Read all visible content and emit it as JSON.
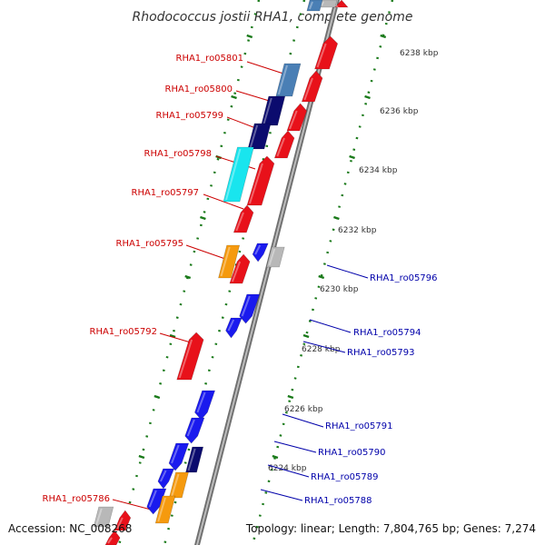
{
  "title": "Rhodococcus jostii RHA1, complete genome",
  "footer": {
    "accession": "Accession: NC_008268",
    "summary": "Topology: linear; Length: 7,804,765 bp; Genes: 7,274"
  },
  "scale_labels": [
    "6238 kbp",
    "6236 kbp",
    "6234 kbp",
    "6232 kbp",
    "6230 kbp",
    "6228 kbp",
    "6226 kbp",
    "6224 kbp"
  ],
  "left_genes": [
    "RHA1_ro05801",
    "RHA1_ro05800",
    "RHA1_ro05799",
    "RHA1_ro05798",
    "RHA1_ro05797",
    "RHA1_ro05795",
    "RHA1_ro05792",
    "RHA1_ro05786"
  ],
  "right_genes": [
    "RHA1_ro05796",
    "RHA1_ro05794",
    "RHA1_ro05793",
    "RHA1_ro05791",
    "RHA1_ro05790",
    "RHA1_ro05789",
    "RHA1_ro05788"
  ],
  "colors": {
    "forward_strand": "#e8111a",
    "reverse_strand": "#1a1aee",
    "navy": "#0b0b6e",
    "steel_blue": "#4a7fb5",
    "cyan": "#19e5ee",
    "orange": "#f59a0e",
    "gray": "#b8b8b8",
    "axis_green": "#1a7a1a",
    "left_label": "#cc0000",
    "right_label": "#0000aa"
  }
}
